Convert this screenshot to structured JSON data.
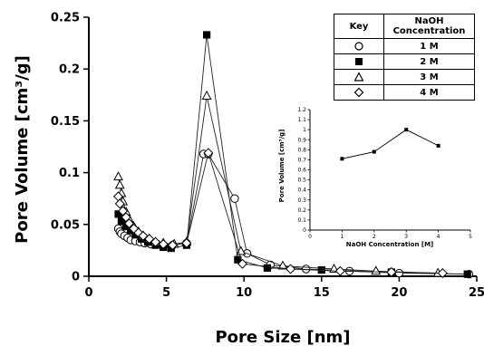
{
  "chart_data": [
    {
      "type": "scatter",
      "mode": "lines+markers",
      "title": "",
      "xlabel": "Pore Size [nm]",
      "ylabel": "Pore Volume [cm³/g]",
      "xlim": [
        0,
        25
      ],
      "ylim": [
        0,
        0.25
      ],
      "xticks": [
        0,
        5,
        10,
        15,
        20,
        25
      ],
      "yticks": [
        0,
        0.05,
        0.1,
        0.15,
        0.2,
        0.25
      ],
      "ytick_labels": [
        "0",
        "0.05",
        "0.1",
        "0.15",
        "0.2",
        "0.25"
      ],
      "grid": false,
      "series": [
        {
          "name": "1 M",
          "marker": "circle-open",
          "x": [
            1.9,
            2.0,
            2.1,
            2.3,
            2.5,
            2.7,
            3.0,
            3.3,
            3.6,
            4.0,
            4.4,
            4.8,
            5.4,
            6.3,
            7.4,
            7.7,
            9.4,
            10.2,
            11.7,
            14.0,
            16.8,
            20.0,
            24.5
          ],
          "y": [
            0.046,
            0.043,
            0.041,
            0.039,
            0.037,
            0.035,
            0.034,
            0.033,
            0.032,
            0.031,
            0.031,
            0.03,
            0.03,
            0.032,
            0.118,
            0.118,
            0.075,
            0.022,
            0.011,
            0.007,
            0.005,
            0.003,
            0.002
          ]
        },
        {
          "name": "2 M",
          "marker": "square-filled",
          "x": [
            1.9,
            2.1,
            2.4,
            2.7,
            3.0,
            3.4,
            3.8,
            4.3,
            4.8,
            5.3,
            6.3,
            7.6,
            9.6,
            11.5,
            15.0,
            19.5,
            24.4
          ],
          "y": [
            0.06,
            0.053,
            0.048,
            0.044,
            0.04,
            0.036,
            0.033,
            0.03,
            0.028,
            0.027,
            0.03,
            0.233,
            0.016,
            0.008,
            0.006,
            0.004,
            0.002
          ]
        },
        {
          "name": "3 M",
          "marker": "triangle-open",
          "x": [
            1.9,
            2.0,
            2.1,
            2.2,
            2.4,
            2.6,
            2.9,
            3.2,
            3.5,
            3.9,
            4.3,
            4.8,
            5.5,
            6.3,
            7.6,
            9.8,
            12.5,
            15.8,
            18.5,
            22.5
          ],
          "y": [
            0.096,
            0.088,
            0.08,
            0.072,
            0.062,
            0.055,
            0.048,
            0.043,
            0.039,
            0.036,
            0.033,
            0.032,
            0.031,
            0.033,
            0.174,
            0.024,
            0.01,
            0.007,
            0.005,
            0.003
          ]
        },
        {
          "name": "4 M",
          "marker": "diamond-open",
          "x": [
            1.9,
            2.0,
            2.2,
            2.4,
            2.6,
            2.9,
            3.2,
            3.5,
            3.9,
            4.3,
            4.8,
            5.4,
            6.3,
            7.7,
            9.9,
            13.0,
            16.2,
            19.5,
            22.8
          ],
          "y": [
            0.077,
            0.07,
            0.063,
            0.057,
            0.051,
            0.046,
            0.042,
            0.039,
            0.036,
            0.033,
            0.031,
            0.03,
            0.032,
            0.119,
            0.012,
            0.007,
            0.005,
            0.004,
            0.003
          ]
        }
      ],
      "legend": {
        "placement": "top-right",
        "header_key": "Key",
        "header_conc": "NaOH Concentration",
        "rows": [
          "1 M",
          "2 M",
          "3 M",
          "4 M"
        ]
      }
    },
    {
      "type": "line",
      "title": "",
      "xlabel": "NaOH Concentration [M]",
      "ylabel": "Pore Volume [cm³/g]",
      "xlim": [
        0,
        5
      ],
      "ylim": [
        0,
        1.2
      ],
      "xticks": [
        0,
        1,
        2,
        3,
        4,
        5
      ],
      "yticks": [
        0,
        0.1,
        0.2,
        0.3,
        0.4,
        0.5,
        0.6,
        0.7,
        0.8,
        0.9,
        1,
        1.1,
        1.2
      ],
      "ytick_labels": [
        "0",
        "0.1",
        "0.2",
        "0.3",
        "0.4",
        "0.5",
        "0.6",
        "0.7",
        "0.8",
        "0.9",
        "1",
        "1.1",
        "1.2"
      ],
      "grid": false,
      "series": [
        {
          "x": [
            1,
            2,
            3,
            4
          ],
          "y": [
            0.71,
            0.78,
            1.0,
            0.84
          ]
        }
      ]
    }
  ]
}
